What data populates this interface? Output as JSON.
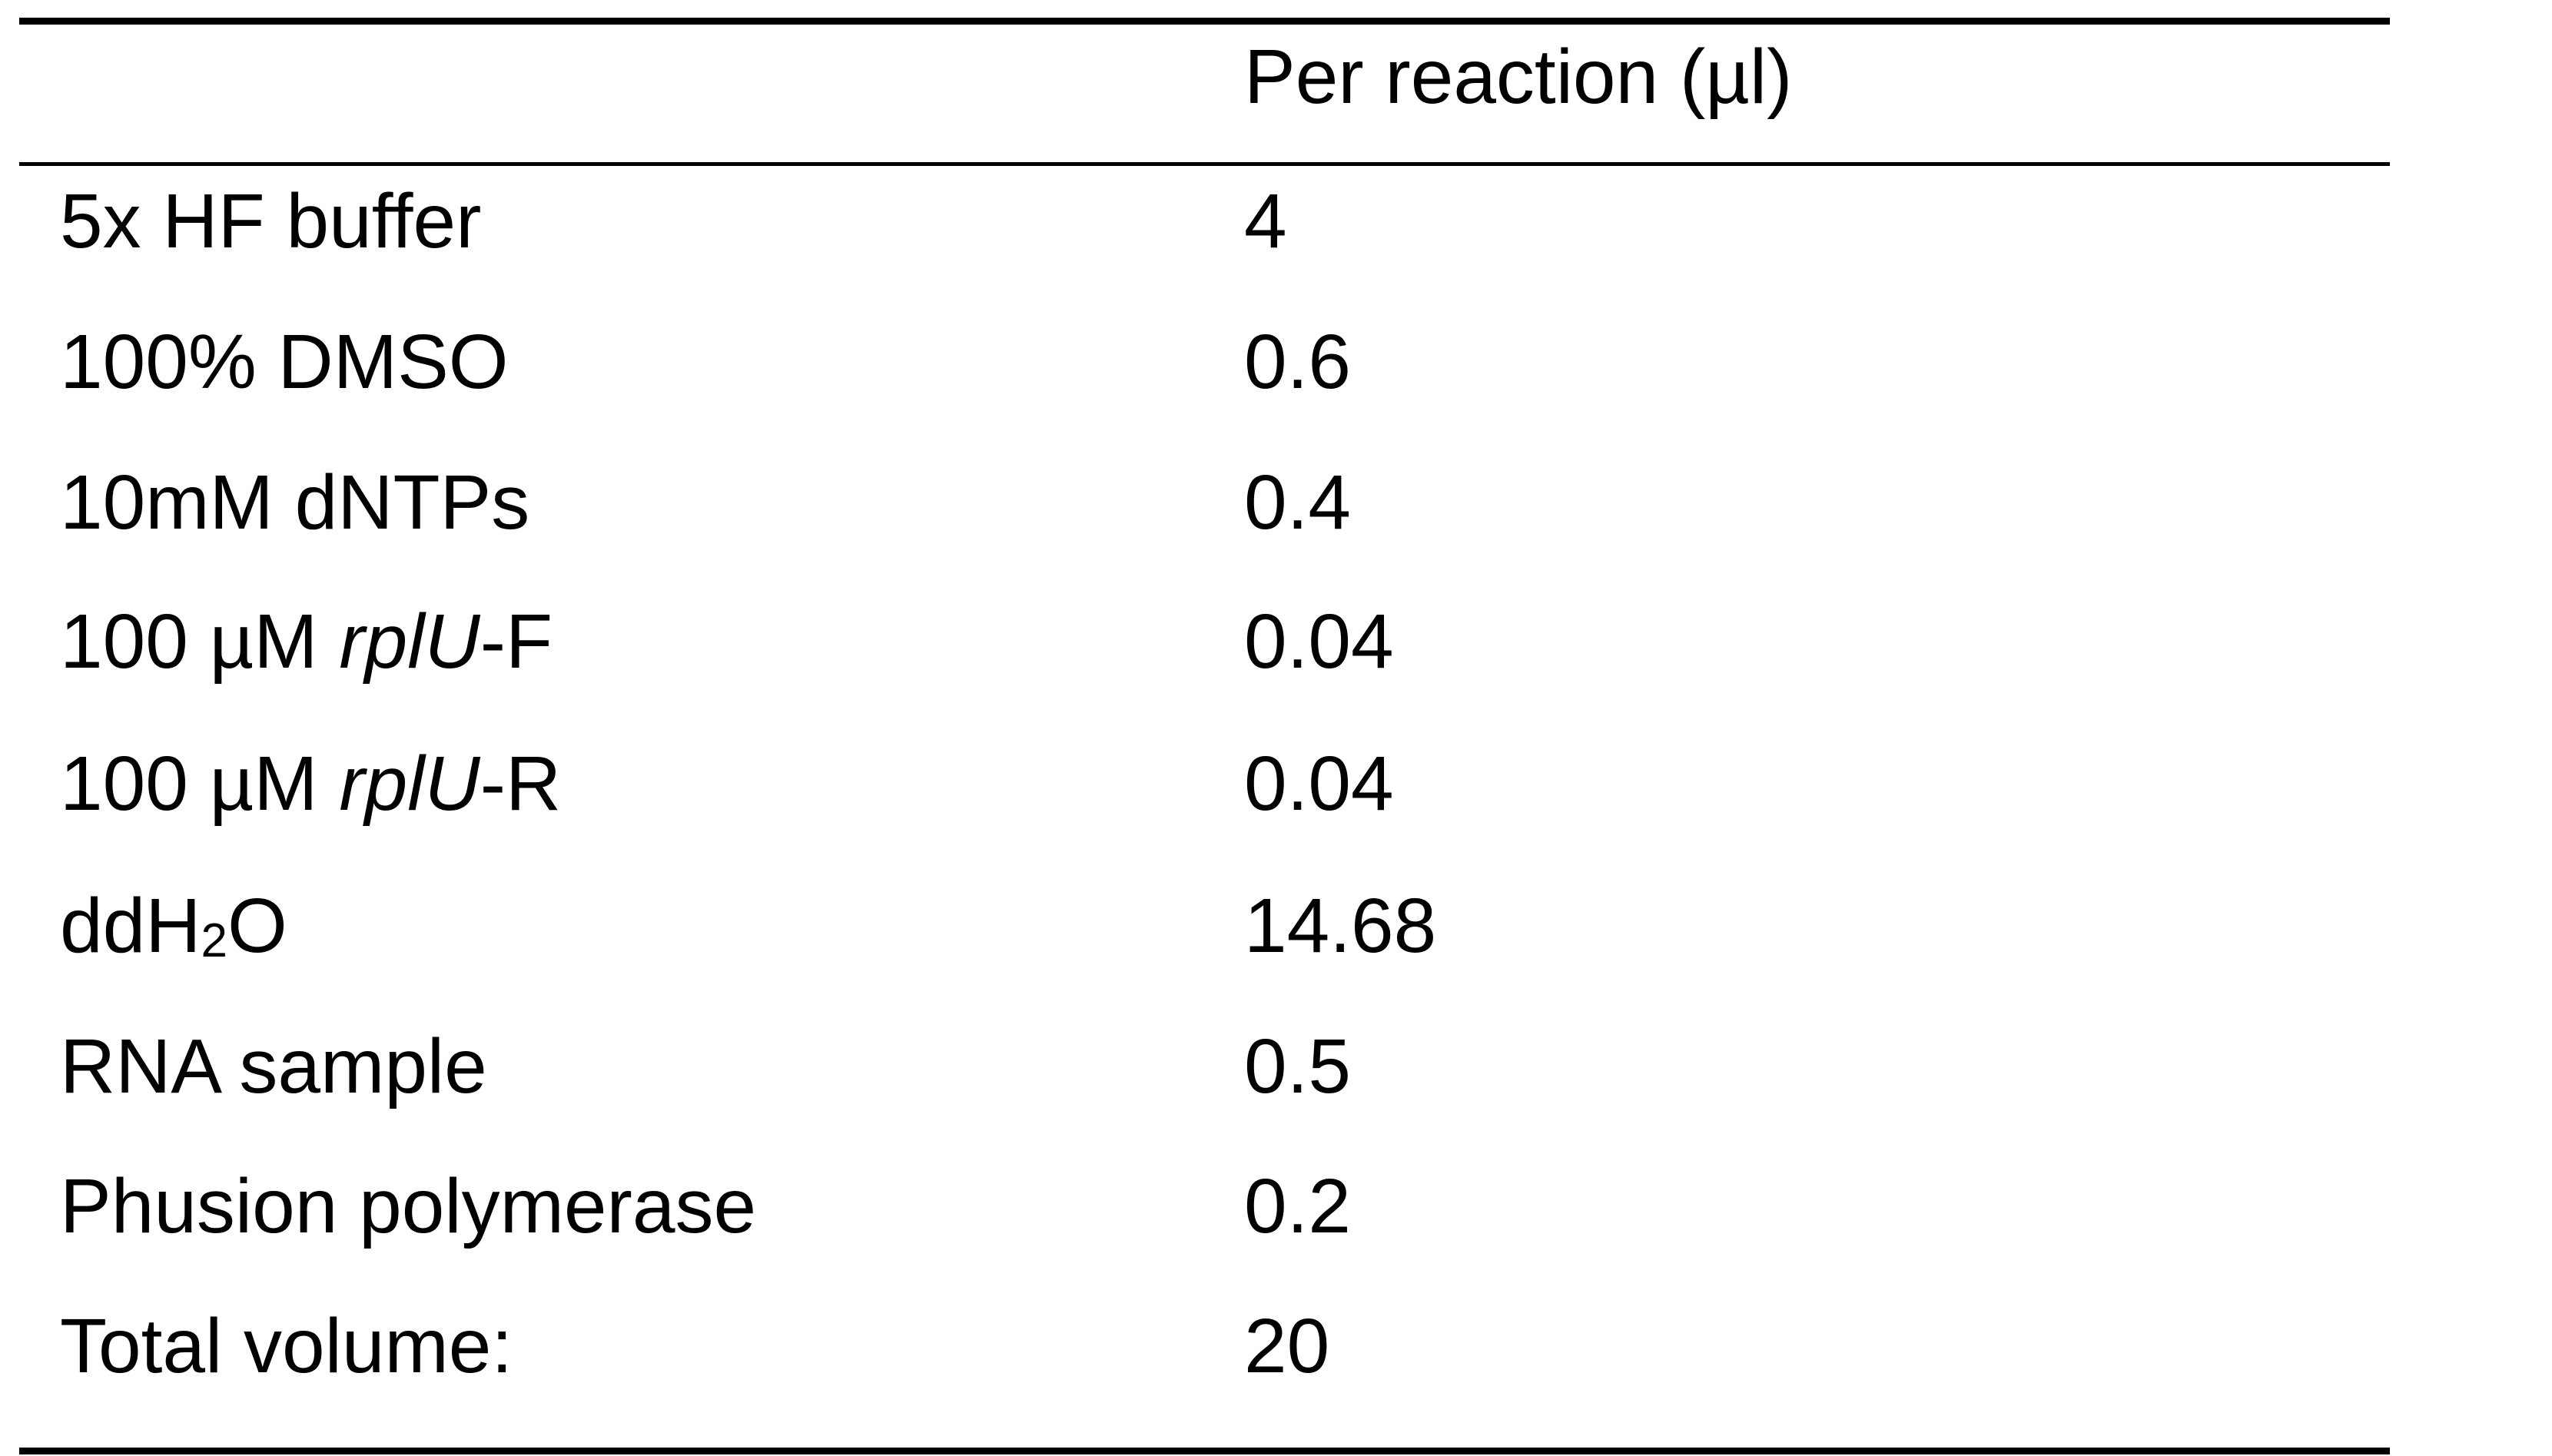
{
  "table": {
    "header": {
      "reagent": "",
      "volume": "Per reaction (µl)"
    },
    "rows": [
      {
        "reagent": "5x HF buffer",
        "volume": "4"
      },
      {
        "reagent": "100% DMSO",
        "volume": "0.6"
      },
      {
        "reagent": "10mM dNTPs",
        "volume": "0.4"
      },
      {
        "reagent_prefix": "100 µM ",
        "reagent_italic": "rplU",
        "reagent_suffix": "-F",
        "volume": "0.04"
      },
      {
        "reagent_prefix": "100 µM ",
        "reagent_italic": "rplU",
        "reagent_suffix": "-R",
        "volume": "0.04"
      },
      {
        "reagent_prefix": "ddH",
        "reagent_sub": "2",
        "reagent_suffix": "O",
        "volume": "14.68"
      },
      {
        "reagent": "RNA sample",
        "volume": "0.5"
      },
      {
        "reagent": "Phusion polymerase",
        "volume": "0.2"
      },
      {
        "reagent": "Total volume:",
        "volume": "20"
      }
    ]
  }
}
